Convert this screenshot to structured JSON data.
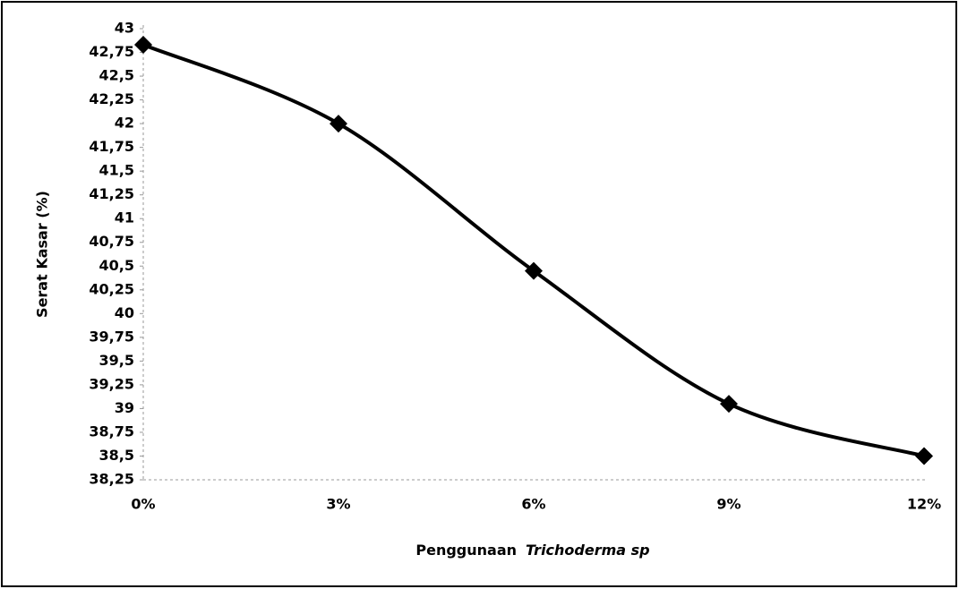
{
  "chart_data": {
    "type": "line",
    "ylabel": "Serat Kasar (%)",
    "xlabel": "Penggunaan",
    "xlabel_italic": "Trichoderma sp",
    "categories": [
      "0%",
      "3%",
      "6%",
      "9%",
      "12%"
    ],
    "values": [
      42.83,
      42,
      40.45,
      39.05,
      38.5
    ],
    "color": "#000000",
    "smooth": true,
    "ylim": [
      38.25,
      43
    ],
    "yticks": [
      {
        "value": 38.25,
        "label": "38,25"
      },
      {
        "value": 38.5,
        "label": "38,5"
      },
      {
        "value": 38.75,
        "label": "38,75"
      },
      39,
      {
        "value": 39.25,
        "label": "39,25"
      },
      {
        "value": 39.5,
        "label": "39,5"
      },
      {
        "value": 39.75,
        "label": "39,75"
      },
      40,
      {
        "value": 40.25,
        "label": "40,25"
      },
      {
        "value": 40.5,
        "label": "40,5"
      },
      {
        "value": 40.75,
        "label": "40,75"
      },
      41,
      {
        "value": 41.25,
        "label": "41,25"
      },
      {
        "value": 41.5,
        "label": "41,5"
      },
      {
        "value": 41.75,
        "label": "41,75"
      },
      42,
      {
        "value": 42.25,
        "label": "42,25"
      },
      {
        "value": 42.5,
        "label": "42,5"
      },
      {
        "value": 42.75,
        "label": "42,75"
      },
      43
    ]
  }
}
